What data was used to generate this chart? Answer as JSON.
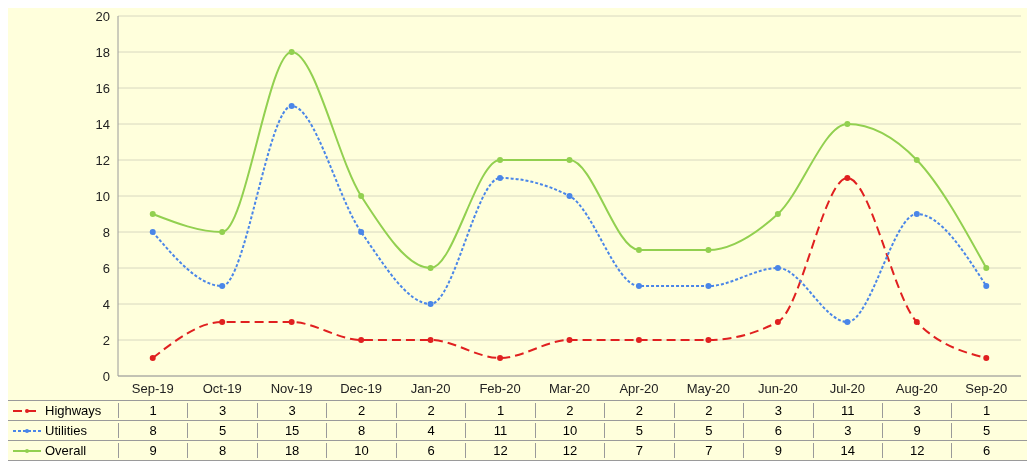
{
  "chart_data": {
    "type": "line",
    "categories": [
      "Sep-19",
      "Oct-19",
      "Nov-19",
      "Dec-19",
      "Jan-20",
      "Feb-20",
      "Mar-20",
      "Apr-20",
      "May-20",
      "Jun-20",
      "Jul-20",
      "Aug-20",
      "Sep-20"
    ],
    "series": [
      {
        "name": "Highways",
        "color": "#e02020",
        "line_style": "dashed",
        "values": [
          1,
          3,
          3,
          2,
          2,
          1,
          2,
          2,
          2,
          3,
          11,
          3,
          1
        ]
      },
      {
        "name": "Utilities",
        "color": "#4a86e8",
        "line_style": "dotted",
        "values": [
          8,
          5,
          15,
          8,
          4,
          11,
          10,
          5,
          5,
          6,
          3,
          9,
          5
        ]
      },
      {
        "name": "Overall",
        "color": "#92d050",
        "line_style": "solid",
        "values": [
          9,
          8,
          18,
          10,
          6,
          12,
          12,
          7,
          7,
          9,
          14,
          12,
          6
        ]
      }
    ],
    "ylim": [
      0,
      20
    ],
    "yticks": [
      0,
      2,
      4,
      6,
      8,
      10,
      12,
      14,
      16,
      18,
      20
    ],
    "grid": "y",
    "legend": "bottom left",
    "marker": "circle",
    "data_labels": true
  }
}
